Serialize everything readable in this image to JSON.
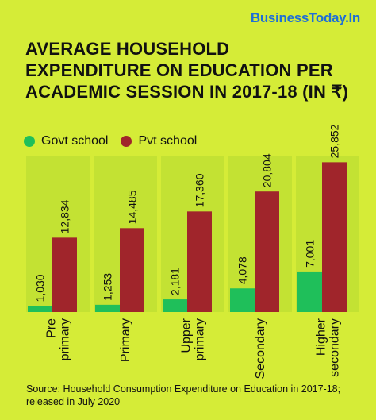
{
  "brand": "BusinessToday.In",
  "title_lines": [
    "AVERAGE HOUSEHOLD",
    "EXPENDITURE ON EDUCATION PER",
    "ACADEMIC SESSION IN 2017-18 (IN ₹)"
  ],
  "source_lines": [
    "Source: Household Consumption Expenditure on Education in 2017-18;",
    "released in July 2020"
  ],
  "colors": {
    "background": "#d5ec37",
    "panel": "#c3e233",
    "govt": "#1fbf5a",
    "pvt": "#a0252b",
    "brand": "#1f6fd6"
  },
  "chart_data": {
    "type": "bar",
    "title": "AVERAGE HOUSEHOLD EXPENDITURE ON EDUCATION PER ACADEMIC SESSION IN 2017-18 (IN ₹)",
    "categories": [
      [
        "Pre",
        "primary"
      ],
      [
        "Primary"
      ],
      [
        "Upper",
        "primary"
      ],
      [
        "Secondary"
      ],
      [
        "Higher",
        "secondary"
      ]
    ],
    "series": [
      {
        "name": "Govt school",
        "values": [
          1030,
          1253,
          2181,
          4078,
          7001
        ],
        "labels": [
          "1,030",
          "1,253",
          "2,181",
          "4,078",
          "7,001"
        ],
        "color": "#1fbf5a"
      },
      {
        "name": "Pvt school",
        "values": [
          12834,
          14485,
          17360,
          20804,
          25852
        ],
        "labels": [
          "12,834",
          "14,485",
          "17,360",
          "20,804",
          "25,852"
        ],
        "color": "#a0252b"
      }
    ],
    "legend": "top-left",
    "grid": false
  }
}
